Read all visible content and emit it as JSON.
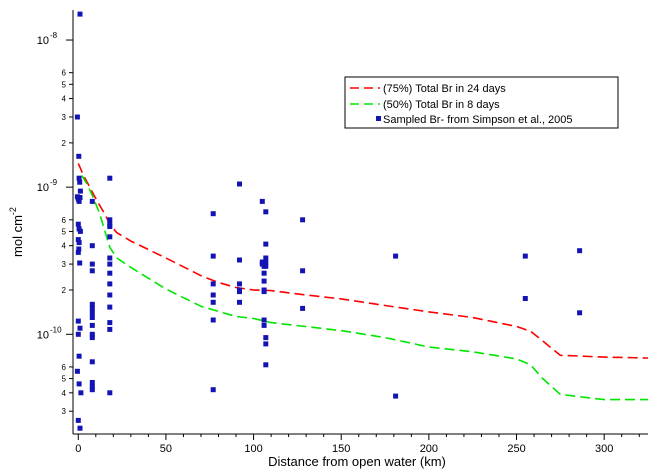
{
  "chart_data": {
    "type": "scatter",
    "xlabel": "Distance from open water (km)",
    "ylabel": "mol cm",
    "ylabel_sup": "-2",
    "xlim": [
      -3,
      325
    ],
    "ylim": [
      2.1e-11,
      1.6e-08
    ],
    "y_scale": "log",
    "x_ticks": [
      0,
      50,
      100,
      150,
      200,
      250,
      300
    ],
    "x_tick_labels": [
      "0",
      "50",
      "100",
      "150",
      "200",
      "250",
      "300"
    ],
    "y_major_ticks": [
      {
        "value": 1e-10,
        "label": "10",
        "exp": "-10"
      },
      {
        "value": 1e-09,
        "label": "10",
        "exp": "-9"
      },
      {
        "value": 1e-08,
        "label": "10",
        "exp": "-8"
      }
    ],
    "y_minor_ticks": [
      {
        "value": 3e-11,
        "label": "3"
      },
      {
        "value": 4e-11,
        "label": "4"
      },
      {
        "value": 5e-11,
        "label": "5"
      },
      {
        "value": 6e-11,
        "label": "6"
      },
      {
        "value": 2e-10,
        "label": "2"
      },
      {
        "value": 3e-10,
        "label": "3"
      },
      {
        "value": 4e-10,
        "label": "4"
      },
      {
        "value": 5e-10,
        "label": "5"
      },
      {
        "value": 6e-10,
        "label": "6"
      },
      {
        "value": 2e-09,
        "label": "2"
      },
      {
        "value": 3e-09,
        "label": "3"
      },
      {
        "value": 4e-09,
        "label": "4"
      },
      {
        "value": 5e-09,
        "label": "5"
      },
      {
        "value": 6e-09,
        "label": "6"
      }
    ],
    "legend_position": "top-right",
    "series": [
      {
        "name": "(75%) Total Br in 24 days",
        "kind": "dashed-line",
        "color": "#ff0000",
        "x": [
          0,
          3,
          6,
          9,
          12,
          15,
          18,
          22,
          30,
          50,
          70,
          80,
          90,
          100,
          110,
          130,
          150,
          175,
          200,
          225,
          250,
          258,
          265,
          275,
          300,
          325
        ],
        "y": [
          1.45e-09,
          1.2e-09,
          1.03e-09,
          8.8e-10,
          7.6e-10,
          6.6e-10,
          5.6e-10,
          4.9e-10,
          4.3e-10,
          3.3e-10,
          2.5e-10,
          2.25e-10,
          2.08e-10,
          2e-10,
          1.98e-10,
          1.85e-10,
          1.74e-10,
          1.57e-10,
          1.42e-10,
          1.3e-10,
          1.13e-10,
          1.05e-10,
          9e-11,
          7.2e-11,
          7e-11,
          6.9e-11
        ]
      },
      {
        "name": "(50%) Total Br in 8 days",
        "kind": "dashed-line",
        "color": "#00e600",
        "x": [
          2,
          5,
          8,
          12,
          15,
          18,
          22,
          30,
          50,
          70,
          90,
          100,
          110,
          150,
          175,
          200,
          225,
          250,
          258,
          265,
          275,
          300,
          325
        ],
        "y": [
          1.2e-09,
          1.05e-09,
          8.8e-10,
          6.7e-10,
          5.1e-10,
          3.9e-10,
          3.3e-10,
          2.85e-10,
          2.03e-10,
          1.55e-10,
          1.32e-10,
          1.28e-10,
          1.2e-10,
          1.06e-10,
          9.5e-11,
          8.2e-11,
          7.6e-11,
          6.8e-11,
          6.2e-11,
          5e-11,
          3.9e-11,
          3.6e-11,
          3.6e-11
        ]
      },
      {
        "name": "Sampled Br- from Simpson et al., 2005",
        "kind": "square-markers",
        "color": "#1414b4",
        "x": [
          1,
          -0.5,
          0.3,
          0.5,
          0.8,
          1.2,
          -0.5,
          0,
          0.5,
          1,
          0,
          0.5,
          1.2,
          0,
          0.5,
          0.3,
          0,
          0.8,
          0,
          1,
          0,
          0.5,
          -0.5,
          0.5,
          1.5,
          0,
          1,
          8,
          8,
          8,
          8,
          8,
          8,
          8,
          8,
          8,
          8,
          8,
          8,
          8,
          8,
          8,
          18,
          18,
          18,
          18,
          18,
          18,
          18,
          18,
          18,
          18,
          18,
          18,
          18,
          18,
          77,
          77,
          77,
          77,
          77,
          77,
          77,
          92,
          92,
          92,
          92,
          92,
          92,
          105,
          105,
          105,
          106,
          106,
          106,
          106,
          106,
          106,
          106,
          107,
          107,
          107,
          107,
          107,
          107,
          107,
          107,
          128,
          128,
          128,
          181,
          181,
          255,
          255,
          286,
          286
        ],
        "y": [
          1.5e-08,
          3e-09,
          1.62e-09,
          1.15e-09,
          1.08e-09,
          9.4e-10,
          8.6e-10,
          8.3e-10,
          8e-10,
          8.5e-10,
          5.6e-10,
          5.2e-10,
          5e-10,
          4.4e-10,
          4.2e-10,
          3.8e-10,
          3.6e-10,
          3.05e-10,
          1.23e-10,
          1.1e-10,
          1e-10,
          7.1e-11,
          5.6e-11,
          4.6e-11,
          4e-11,
          2.6e-11,
          2.3e-11,
          8e-10,
          4e-10,
          3e-10,
          2.7e-10,
          1.6e-10,
          1.5e-10,
          1.4e-10,
          1.3e-10,
          1.15e-10,
          1e-10,
          9.5e-11,
          6.5e-11,
          4.7e-11,
          4.4e-11,
          4.2e-11,
          1.15e-09,
          6e-10,
          5.6e-10,
          5.4e-10,
          4.6e-10,
          3.3e-10,
          3e-10,
          2.6e-10,
          2.2e-10,
          1.85e-10,
          1.53e-10,
          1.2e-10,
          1.08e-10,
          4e-11,
          6.6e-10,
          3.4e-10,
          2.2e-10,
          1.85e-10,
          1.65e-10,
          1.25e-10,
          4.2e-11,
          1.05e-09,
          3.2e-10,
          2.2e-10,
          2e-10,
          1.95e-10,
          1.65e-10,
          8e-10,
          3.1e-10,
          3e-10,
          2.9e-10,
          2.6e-10,
          2.3e-10,
          2e-10,
          1.95e-10,
          1.25e-10,
          1.15e-10,
          6.8e-10,
          4.1e-10,
          3.3e-10,
          3.1e-10,
          2.9e-10,
          9.5e-11,
          8.6e-11,
          6.2e-11,
          6e-10,
          2.7e-10,
          1.5e-10,
          3.4e-10,
          3.8e-11,
          3.4e-10,
          1.75e-10,
          3.7e-10,
          1.4e-10
        ]
      }
    ]
  }
}
